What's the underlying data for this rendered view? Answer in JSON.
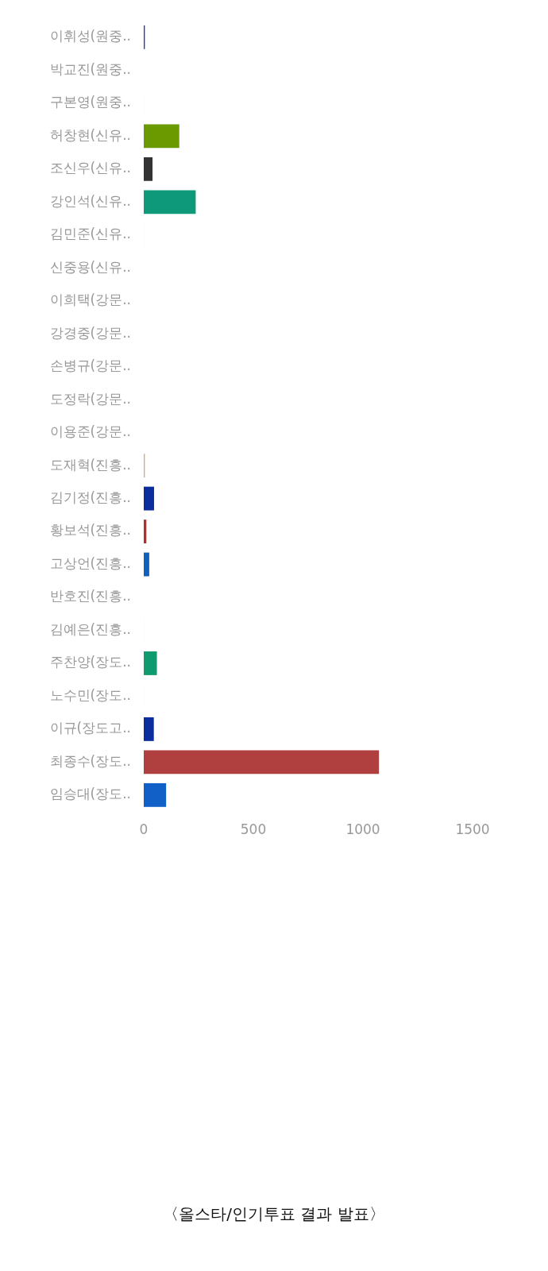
{
  "chart_data": {
    "type": "bar",
    "orientation": "horizontal",
    "categories": [
      "이휘성(원중..",
      "박교진(원중..",
      "구본영(원중..",
      "허창현(신유..",
      "조신우(신유..",
      "강인석(신유..",
      "김민준(신유..",
      "신중용(신유..",
      "이희택(강문..",
      "강경중(강문..",
      "손병규(강문..",
      "도정락(강문..",
      "이용준(강문..",
      "도재혁(진흥..",
      "김기정(진흥..",
      "황보석(진흥..",
      "고상언(진흥..",
      "반호진(진흥..",
      "김예은(진흥..",
      "주찬양(장도..",
      "노수민(장도..",
      "이규(장도고..",
      "최종수(장도..",
      "임승대(장도.."
    ],
    "values": [
      5,
      null,
      1,
      162,
      40,
      237,
      1,
      null,
      null,
      null,
      null,
      null,
      0,
      5,
      47,
      12,
      25,
      0,
      1,
      60,
      1,
      46,
      1073,
      102
    ],
    "colors": [
      "#1f3fa8",
      "#dddddd",
      "#eeeeee",
      "#6a9a00",
      "#333333",
      "#0e9a7a",
      "#eeeeee",
      "#c8d0e0",
      "#e4e4e4",
      "#a8c0e0",
      "#e0d8b0",
      "#e4e4e4",
      "#eeeeee",
      "#d8a880",
      "#0a2ea0",
      "#b03030",
      "#1060c0",
      "#eeeeee",
      "#eeeeee",
      "#109a70",
      "#eeeeee",
      "#0a2ea0",
      "#b04040",
      "#1060c8"
    ],
    "xlim": [
      0,
      1500
    ],
    "xticks": [
      0,
      500,
      1000,
      1500
    ],
    "grid": false,
    "legend": false,
    "annotations": [
      "〈올스타/인기투표 결과 발표〉"
    ]
  }
}
